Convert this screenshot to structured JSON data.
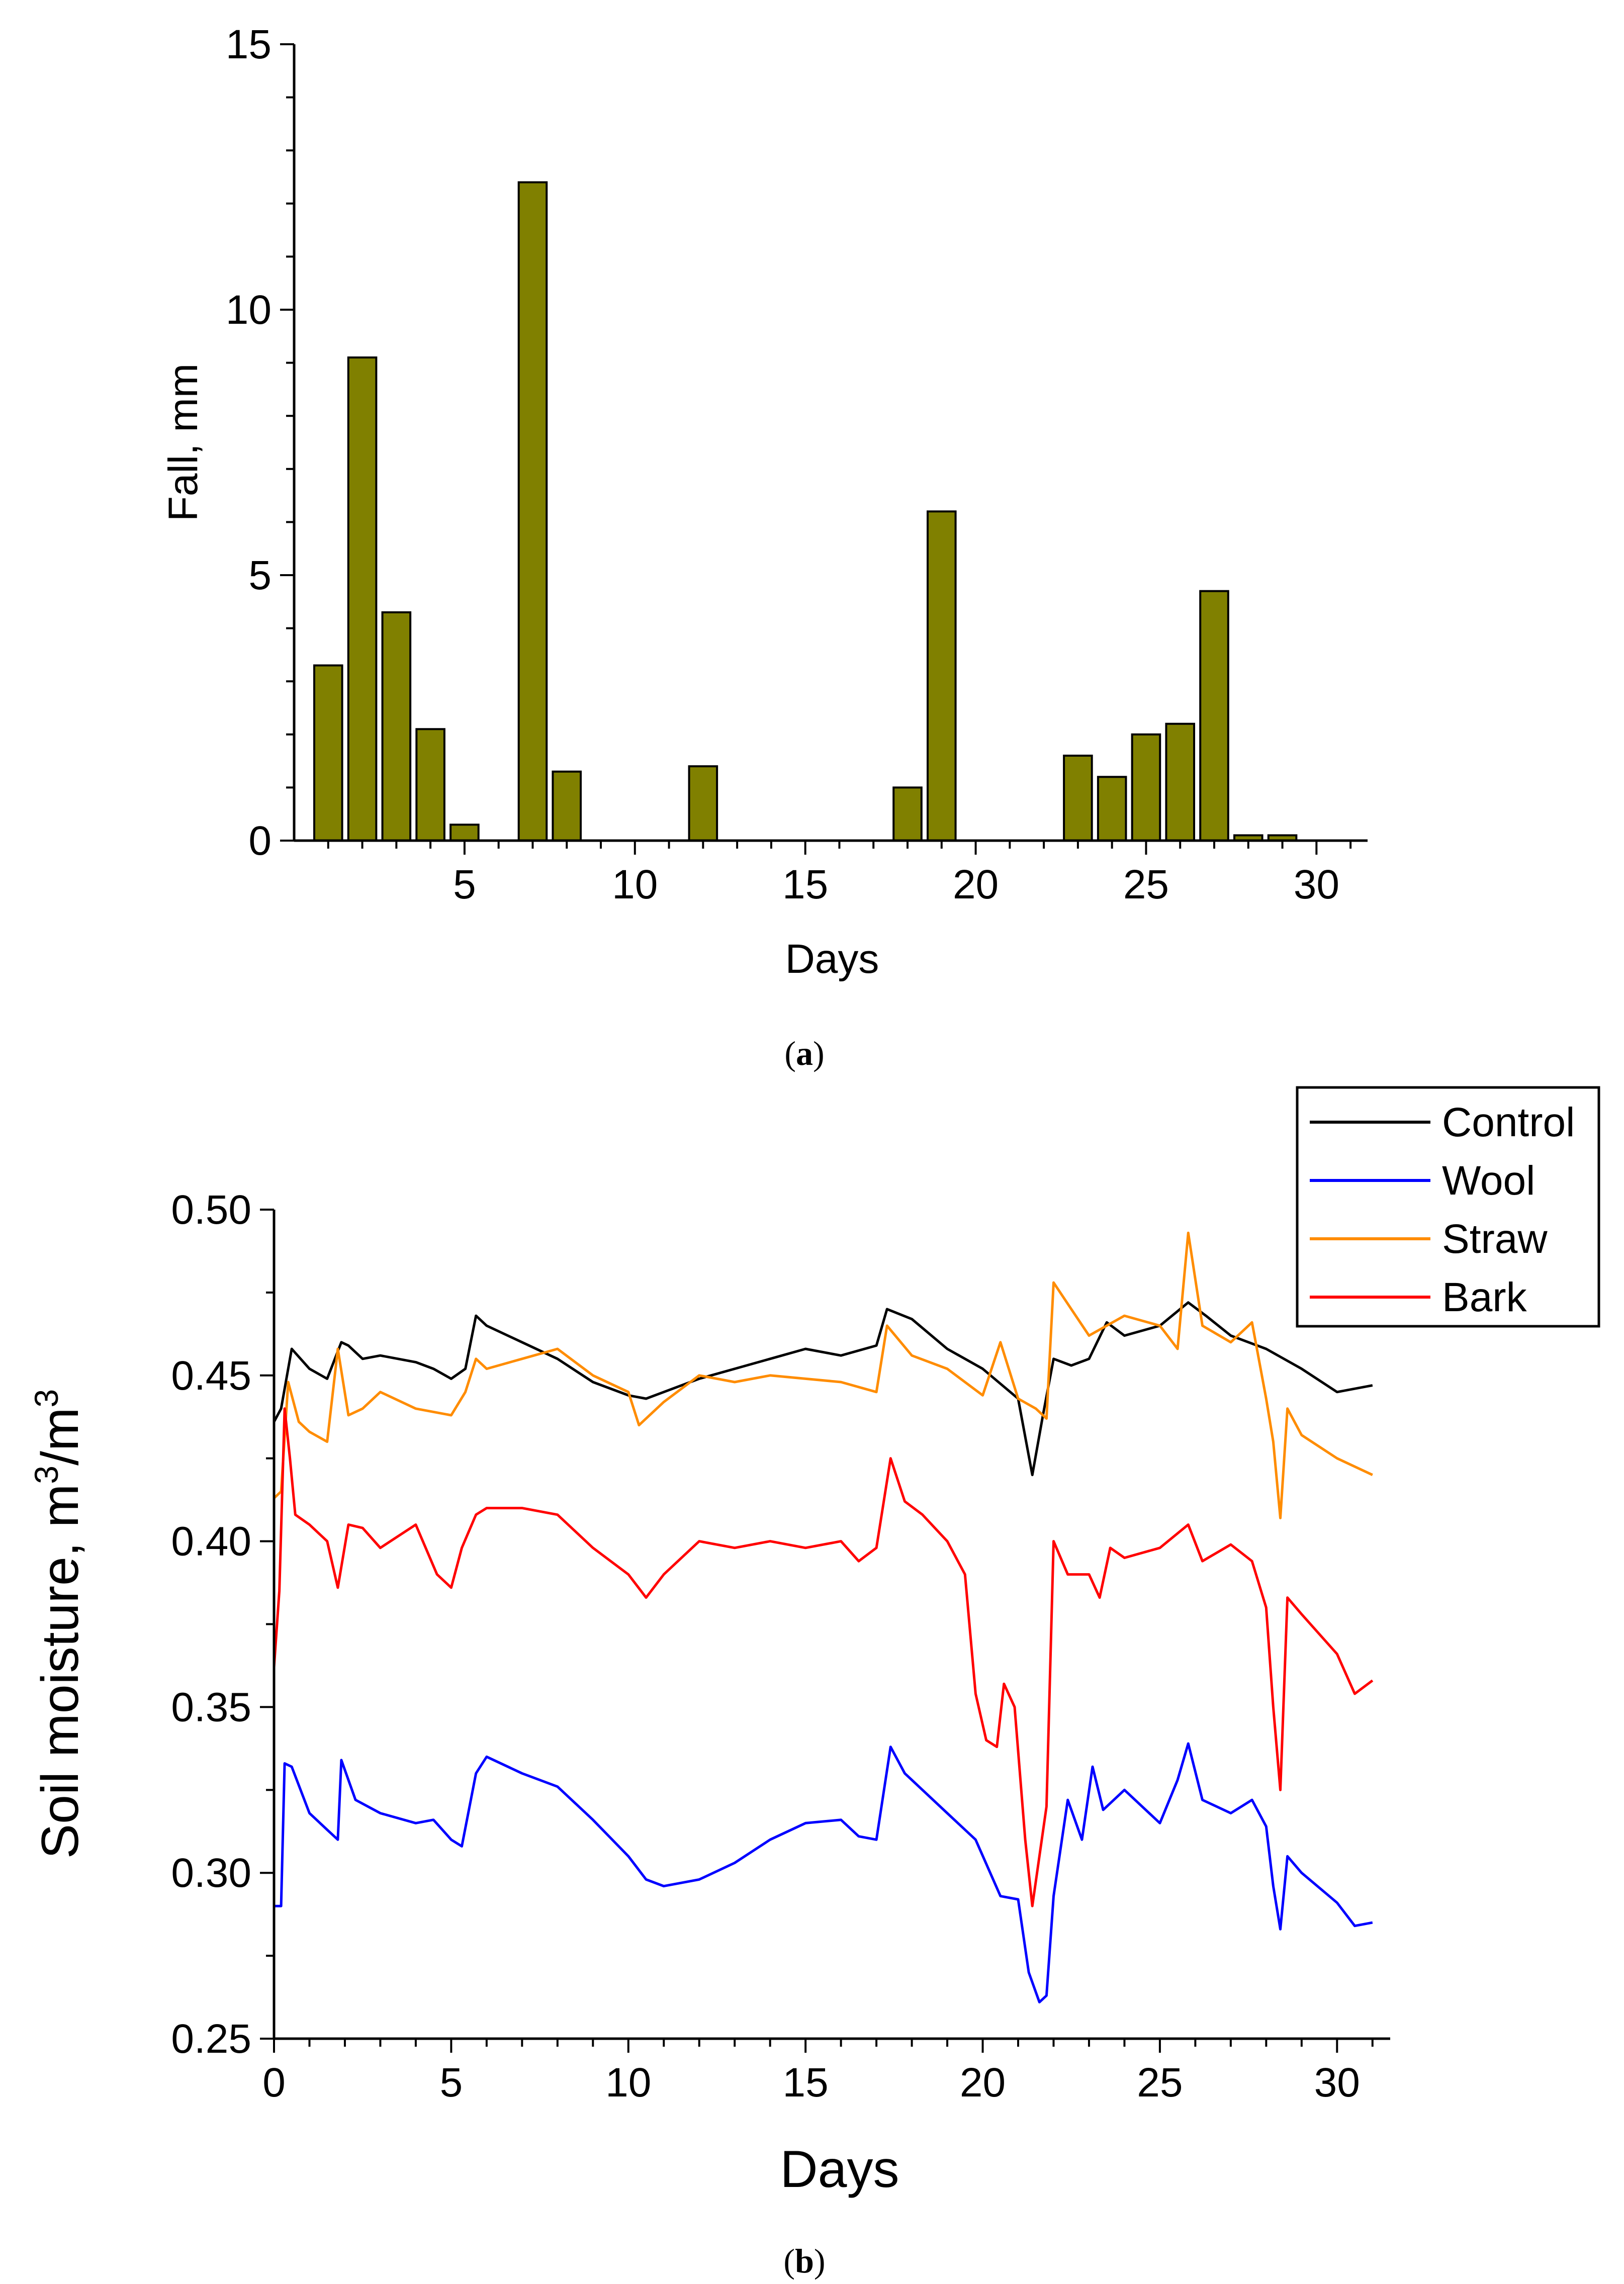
{
  "chart_data": [
    {
      "type": "bar",
      "panel_label": "a",
      "xlabel": "Days",
      "ylabel": "Fall, mm",
      "xlim": [
        0,
        31.5
      ],
      "ylim": [
        0,
        15
      ],
      "xticks": [
        5,
        10,
        15,
        20,
        25,
        30
      ],
      "yticks": [
        0,
        5,
        10,
        15
      ],
      "bar_color": "#808000",
      "bar_edge_color": "#000000",
      "days": [
        1,
        2,
        3,
        4,
        5,
        7,
        8,
        12,
        18,
        19,
        23,
        24,
        25,
        26,
        27,
        28,
        29
      ],
      "values": [
        3.3,
        9.1,
        4.3,
        2.1,
        0.3,
        12.4,
        1.3,
        1.4,
        1.0,
        6.2,
        1.6,
        1.2,
        2.0,
        2.2,
        4.7,
        0.1,
        0.1
      ]
    },
    {
      "type": "line",
      "panel_label": "b",
      "xlabel": "Days",
      "ylabel": "Soil moisture, m",
      "ylabel_sup1": "3",
      "ylabel_mid": "/m",
      "ylabel_sup2": "3",
      "xlim": [
        0,
        31.5
      ],
      "ylim": [
        0.25,
        0.5
      ],
      "xticks": [
        0,
        5,
        10,
        15,
        20,
        25,
        30
      ],
      "yticks": [
        0.25,
        0.3,
        0.35,
        0.4,
        0.45,
        0.5
      ],
      "legend_position": "top-right",
      "series": [
        {
          "name": "Control",
          "color": "#000000",
          "x": [
            0,
            0.2,
            0.5,
            1,
            1.5,
            1.9,
            2.1,
            2.5,
            3,
            3.5,
            4,
            4.5,
            5,
            5.4,
            5.7,
            6,
            7,
            8,
            9,
            10,
            10.5,
            11,
            12,
            13,
            14,
            15,
            16,
            17,
            17.3,
            18,
            19,
            20,
            21,
            21.4,
            21.7,
            22,
            22.5,
            23,
            23.5,
            24,
            25,
            25.8,
            26.3,
            27,
            28,
            29,
            30,
            31
          ],
          "y": [
            0.436,
            0.44,
            0.458,
            0.452,
            0.449,
            0.46,
            0.459,
            0.455,
            0.456,
            0.455,
            0.454,
            0.452,
            0.449,
            0.452,
            0.468,
            0.465,
            0.46,
            0.455,
            0.448,
            0.444,
            0.443,
            0.445,
            0.449,
            0.452,
            0.455,
            0.458,
            0.456,
            0.459,
            0.47,
            0.467,
            0.458,
            0.452,
            0.443,
            0.42,
            0.438,
            0.455,
            0.453,
            0.455,
            0.466,
            0.462,
            0.465,
            0.472,
            0.468,
            0.462,
            0.458,
            0.452,
            0.445,
            0.447
          ]
        },
        {
          "name": "Wool",
          "color": "#0000ff",
          "x": [
            0,
            0.2,
            0.3,
            0.5,
            1,
            1.5,
            1.8,
            1.9,
            2.3,
            3,
            4,
            4.5,
            5,
            5.3,
            5.7,
            6,
            7,
            8,
            9,
            10,
            10.5,
            11,
            12,
            13,
            14,
            15,
            16,
            16.5,
            17,
            17.4,
            17.8,
            18,
            19,
            19.8,
            20.5,
            21,
            21.3,
            21.6,
            21.8,
            22,
            22.4,
            22.8,
            23.1,
            23.4,
            24,
            25,
            25.5,
            25.8,
            26.2,
            27,
            27.6,
            28,
            28.2,
            28.4,
            28.6,
            29,
            30,
            30.5,
            31
          ],
          "y": [
            0.29,
            0.29,
            0.333,
            0.332,
            0.318,
            0.313,
            0.31,
            0.334,
            0.322,
            0.318,
            0.315,
            0.316,
            0.31,
            0.308,
            0.33,
            0.335,
            0.33,
            0.326,
            0.316,
            0.305,
            0.298,
            0.296,
            0.298,
            0.303,
            0.31,
            0.315,
            0.316,
            0.311,
            0.31,
            0.338,
            0.33,
            0.328,
            0.318,
            0.31,
            0.293,
            0.292,
            0.27,
            0.261,
            0.263,
            0.293,
            0.322,
            0.31,
            0.332,
            0.319,
            0.325,
            0.315,
            0.328,
            0.339,
            0.322,
            0.318,
            0.322,
            0.314,
            0.296,
            0.283,
            0.305,
            0.3,
            0.291,
            0.284,
            0.285
          ]
        },
        {
          "name": "Straw",
          "color": "#ff8c00",
          "x": [
            0,
            0.2,
            0.4,
            0.7,
            1,
            1.5,
            1.8,
            2.1,
            2.5,
            3,
            4,
            5,
            5.4,
            5.7,
            6,
            7,
            8,
            9,
            10,
            10.3,
            11,
            12,
            13,
            14,
            15,
            16,
            17,
            17.3,
            18,
            19,
            20,
            20.5,
            21,
            21.5,
            21.8,
            22,
            22.5,
            23,
            24,
            25,
            25.5,
            25.8,
            26.2,
            27,
            27.6,
            28,
            28.2,
            28.4,
            28.6,
            29,
            30,
            31
          ],
          "y": [
            0.413,
            0.415,
            0.448,
            0.436,
            0.433,
            0.43,
            0.458,
            0.438,
            0.44,
            0.445,
            0.44,
            0.438,
            0.445,
            0.455,
            0.452,
            0.455,
            0.458,
            0.45,
            0.445,
            0.435,
            0.442,
            0.45,
            0.448,
            0.45,
            0.449,
            0.448,
            0.445,
            0.465,
            0.456,
            0.452,
            0.444,
            0.46,
            0.443,
            0.44,
            0.437,
            0.478,
            0.47,
            0.462,
            0.468,
            0.465,
            0.458,
            0.493,
            0.465,
            0.46,
            0.466,
            0.443,
            0.43,
            0.407,
            0.44,
            0.432,
            0.425,
            0.42
          ]
        },
        {
          "name": "Bark",
          "color": "#ff0000",
          "x": [
            0,
            0.15,
            0.3,
            0.45,
            0.6,
            1,
            1.5,
            1.8,
            2.1,
            2.5,
            3,
            4,
            4.6,
            5,
            5.3,
            5.7,
            6,
            7,
            8,
            9,
            10,
            10.5,
            11,
            12,
            13,
            14,
            15,
            16,
            16.5,
            17,
            17.4,
            17.8,
            18.3,
            19,
            19.5,
            19.8,
            20.1,
            20.4,
            20.6,
            20.9,
            21.2,
            21.4,
            21.6,
            21.8,
            22,
            22.4,
            23,
            23.3,
            23.6,
            24,
            25,
            25.8,
            26.2,
            27,
            27.6,
            28,
            28.2,
            28.4,
            28.6,
            29,
            30,
            30.5,
            31
          ],
          "y": [
            0.362,
            0.385,
            0.44,
            0.425,
            0.408,
            0.405,
            0.4,
            0.386,
            0.405,
            0.404,
            0.398,
            0.405,
            0.39,
            0.386,
            0.398,
            0.408,
            0.41,
            0.41,
            0.408,
            0.398,
            0.39,
            0.383,
            0.39,
            0.4,
            0.398,
            0.4,
            0.398,
            0.4,
            0.394,
            0.398,
            0.425,
            0.412,
            0.408,
            0.4,
            0.39,
            0.354,
            0.34,
            0.338,
            0.357,
            0.35,
            0.31,
            0.29,
            0.305,
            0.32,
            0.4,
            0.39,
            0.39,
            0.383,
            0.398,
            0.395,
            0.398,
            0.405,
            0.394,
            0.399,
            0.394,
            0.38,
            0.35,
            0.325,
            0.383,
            0.378,
            0.366,
            0.354,
            0.358
          ]
        }
      ]
    }
  ]
}
